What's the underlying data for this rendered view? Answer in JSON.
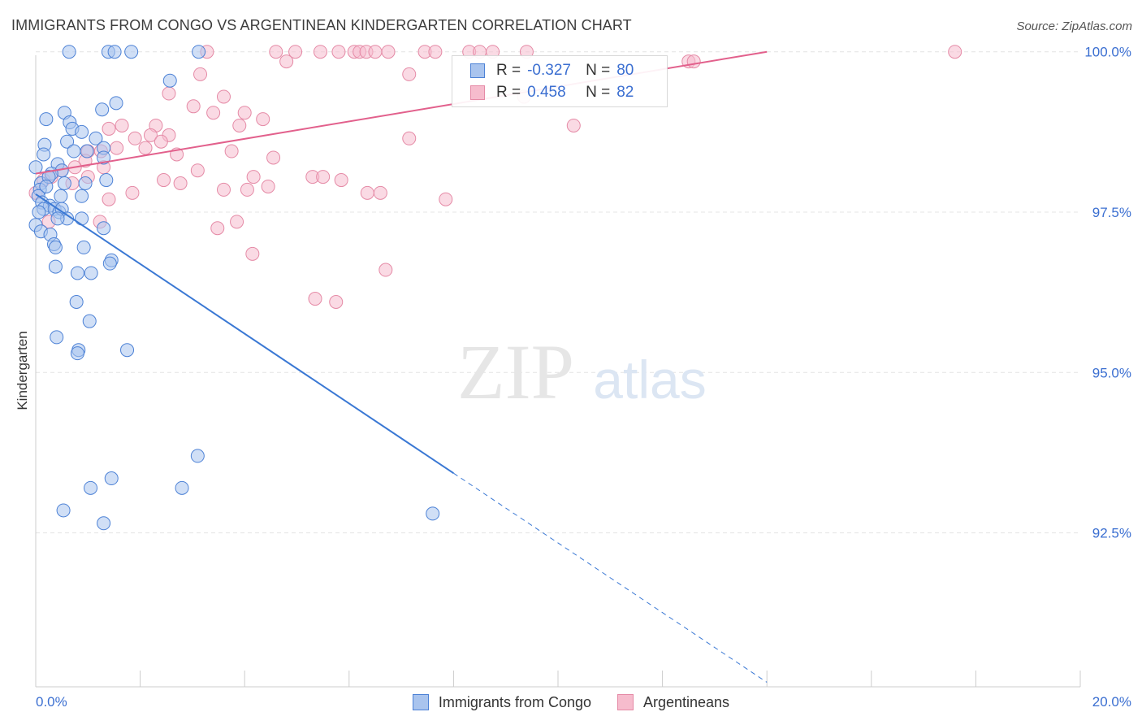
{
  "title": "IMMIGRANTS FROM CONGO VS ARGENTINEAN KINDERGARTEN CORRELATION CHART",
  "source": "Source: ZipAtlas.com",
  "watermark": {
    "zip": "ZIP",
    "atlas": "atlas"
  },
  "stats": [
    {
      "r_label": "R =",
      "r_value": "-0.327",
      "n_label": "N =",
      "n_value": "80"
    },
    {
      "r_label": "R =",
      "r_value": "0.458",
      "n_label": "N =",
      "n_value": "82"
    }
  ],
  "legend": {
    "series1": "Immigrants from Congo",
    "series2": "Argentineans"
  },
  "colors": {
    "blue_fill": "#a9c4ee",
    "blue_stroke": "#4d82d6",
    "blue_line": "#3a78d4",
    "pink_fill": "#f6bccd",
    "pink_stroke": "#e58aa6",
    "pink_line": "#e2608c",
    "axis_text": "#3b6fd1"
  },
  "chart_data": {
    "type": "scatter",
    "title": "IMMIGRANTS FROM CONGO VS ARGENTINEAN KINDERGARTEN CORRELATION CHART",
    "xlabel": "",
    "ylabel": "Kindergarten",
    "xlim": [
      0,
      20
    ],
    "ylim": [
      90.1,
      100.25
    ],
    "x_tick_labels": [
      "0.0%",
      "20.0%"
    ],
    "y_ticks": [
      92.5,
      95.0,
      97.5,
      100.0
    ],
    "y_tick_labels": [
      "92.5%",
      "95.0%",
      "97.5%",
      "100.0%"
    ],
    "grid": true,
    "legend_position": "bottom",
    "series": [
      {
        "name": "Immigrants from Congo",
        "color": "#a9c4ee",
        "trend": {
          "x0": 0.0,
          "y0": 97.78,
          "x1": 8.0,
          "y1": 93.43,
          "dashed_to_x": 14.0,
          "dashed_to_y": 90.17
        },
        "points": [
          [
            0.64,
            100.0
          ],
          [
            1.39,
            100.0
          ],
          [
            1.51,
            100.0
          ],
          [
            1.83,
            100.0
          ],
          [
            3.12,
            100.0
          ],
          [
            2.57,
            99.55
          ],
          [
            1.54,
            99.2
          ],
          [
            1.27,
            99.1
          ],
          [
            0.55,
            99.05
          ],
          [
            0.2,
            98.95
          ],
          [
            0.65,
            98.9
          ],
          [
            0.7,
            98.8
          ],
          [
            0.88,
            98.75
          ],
          [
            1.15,
            98.65
          ],
          [
            0.6,
            98.6
          ],
          [
            0.17,
            98.55
          ],
          [
            1.3,
            98.5
          ],
          [
            0.73,
            98.45
          ],
          [
            0.98,
            98.45
          ],
          [
            0.15,
            98.4
          ],
          [
            1.3,
            98.35
          ],
          [
            0.0,
            98.2
          ],
          [
            0.42,
            98.25
          ],
          [
            0.5,
            98.15
          ],
          [
            0.3,
            98.1
          ],
          [
            1.35,
            98.0
          ],
          [
            0.1,
            97.95
          ],
          [
            0.25,
            98.05
          ],
          [
            0.55,
            97.95
          ],
          [
            0.95,
            97.95
          ],
          [
            0.08,
            97.85
          ],
          [
            0.2,
            97.9
          ],
          [
            0.05,
            97.75
          ],
          [
            0.48,
            97.75
          ],
          [
            0.88,
            97.75
          ],
          [
            0.12,
            97.65
          ],
          [
            0.27,
            97.6
          ],
          [
            0.15,
            97.55
          ],
          [
            0.36,
            97.55
          ],
          [
            0.45,
            97.5
          ],
          [
            0.5,
            97.55
          ],
          [
            0.06,
            97.5
          ],
          [
            0.6,
            97.4
          ],
          [
            0.42,
            97.4
          ],
          [
            0.0,
            97.3
          ],
          [
            0.88,
            97.4
          ],
          [
            1.3,
            97.25
          ],
          [
            0.1,
            97.2
          ],
          [
            0.28,
            97.15
          ],
          [
            0.92,
            96.95
          ],
          [
            0.35,
            97.0
          ],
          [
            0.38,
            96.95
          ],
          [
            1.45,
            96.75
          ],
          [
            1.42,
            96.7
          ],
          [
            0.38,
            96.65
          ],
          [
            0.8,
            96.55
          ],
          [
            1.06,
            96.55
          ],
          [
            0.78,
            96.1
          ],
          [
            1.03,
            95.8
          ],
          [
            0.4,
            95.55
          ],
          [
            0.82,
            95.35
          ],
          [
            0.8,
            95.3
          ],
          [
            1.75,
            95.35
          ],
          [
            3.1,
            93.7
          ],
          [
            1.45,
            93.35
          ],
          [
            1.05,
            93.2
          ],
          [
            2.8,
            93.2
          ],
          [
            0.53,
            92.85
          ],
          [
            1.3,
            92.65
          ],
          [
            7.6,
            92.8
          ]
        ]
      },
      {
        "name": "Argentineans",
        "color": "#f6bccd",
        "trend": {
          "x0": 0.0,
          "y0": 98.1,
          "x1": 14.0,
          "y1": 100.0
        },
        "points": [
          [
            3.28,
            100.0
          ],
          [
            4.6,
            100.0
          ],
          [
            4.97,
            100.0
          ],
          [
            5.45,
            100.0
          ],
          [
            5.8,
            100.0
          ],
          [
            6.1,
            100.0
          ],
          [
            6.2,
            100.0
          ],
          [
            6.33,
            100.0
          ],
          [
            6.5,
            100.0
          ],
          [
            6.75,
            100.0
          ],
          [
            7.45,
            100.0
          ],
          [
            7.65,
            100.0
          ],
          [
            8.3,
            100.0
          ],
          [
            8.5,
            100.0
          ],
          [
            8.75,
            100.0
          ],
          [
            9.4,
            100.0
          ],
          [
            17.6,
            100.0
          ],
          [
            4.8,
            99.85
          ],
          [
            12.5,
            99.85
          ],
          [
            12.6,
            99.85
          ],
          [
            7.15,
            99.65
          ],
          [
            3.15,
            99.65
          ],
          [
            2.55,
            99.35
          ],
          [
            3.6,
            99.3
          ],
          [
            3.4,
            99.05
          ],
          [
            3.02,
            99.15
          ],
          [
            4.0,
            99.05
          ],
          [
            4.35,
            98.95
          ],
          [
            1.4,
            98.8
          ],
          [
            1.65,
            98.85
          ],
          [
            2.3,
            98.85
          ],
          [
            3.9,
            98.85
          ],
          [
            10.3,
            98.85
          ],
          [
            2.2,
            98.7
          ],
          [
            2.55,
            98.7
          ],
          [
            1.9,
            98.65
          ],
          [
            2.4,
            98.6
          ],
          [
            7.15,
            98.65
          ],
          [
            1.55,
            98.5
          ],
          [
            1.0,
            98.45
          ],
          [
            1.25,
            98.45
          ],
          [
            2.1,
            98.5
          ],
          [
            3.75,
            98.45
          ],
          [
            2.7,
            98.4
          ],
          [
            0.95,
            98.3
          ],
          [
            4.55,
            98.35
          ],
          [
            1.3,
            98.2
          ],
          [
            0.5,
            98.15
          ],
          [
            0.75,
            98.2
          ],
          [
            3.1,
            98.15
          ],
          [
            1.0,
            98.05
          ],
          [
            0.3,
            98.05
          ],
          [
            0.7,
            97.95
          ],
          [
            0.15,
            98.0
          ],
          [
            2.45,
            98.0
          ],
          [
            2.77,
            97.95
          ],
          [
            4.17,
            98.05
          ],
          [
            5.3,
            98.05
          ],
          [
            5.5,
            98.05
          ],
          [
            5.85,
            98.0
          ],
          [
            4.45,
            97.9
          ],
          [
            3.6,
            97.85
          ],
          [
            4.05,
            97.85
          ],
          [
            6.35,
            97.8
          ],
          [
            6.6,
            97.8
          ],
          [
            0.0,
            97.8
          ],
          [
            1.85,
            97.8
          ],
          [
            1.4,
            97.7
          ],
          [
            7.85,
            97.7
          ],
          [
            0.25,
            97.35
          ],
          [
            1.23,
            97.35
          ],
          [
            3.85,
            97.35
          ],
          [
            3.48,
            97.25
          ],
          [
            4.15,
            96.85
          ],
          [
            6.7,
            96.6
          ],
          [
            5.35,
            96.15
          ],
          [
            5.75,
            96.1
          ],
          [
            9.35,
            99.3
          ]
        ]
      }
    ]
  }
}
